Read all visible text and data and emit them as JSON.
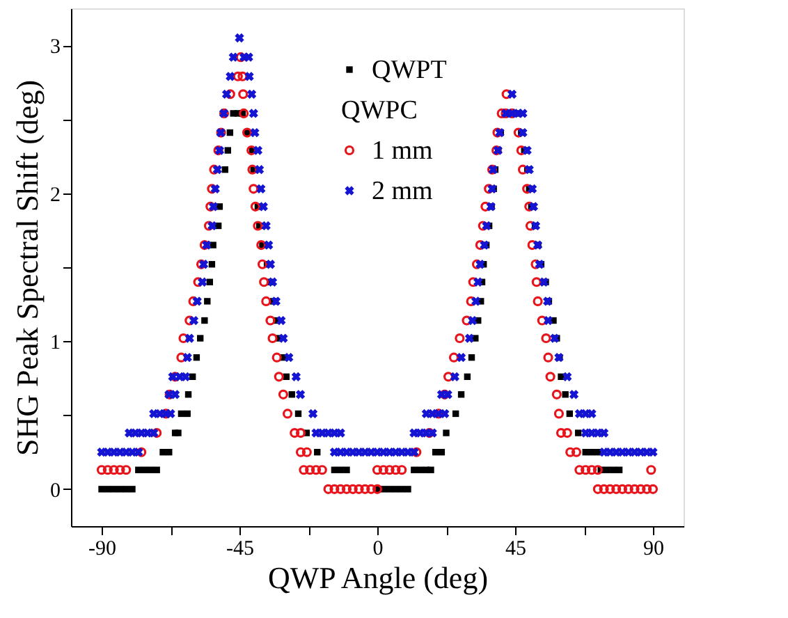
{
  "chart_data": {
    "type": "scatter",
    "xlabel": "QWP Angle (deg)",
    "ylabel": "SHG Peak Spectral Shift (deg)",
    "xlim": [
      -100,
      100
    ],
    "xticks": [
      -90,
      {
        "value": -67.5,
        "label": null
      },
      -45,
      {
        "value": -22.5,
        "label": null
      },
      0,
      {
        "value": 22.5,
        "label": null
      },
      45,
      {
        "value": 67.5,
        "label": null
      },
      90
    ],
    "ylim": [
      -0.25,
      3.25
    ],
    "yticks": [
      0,
      {
        "value": 0.5,
        "label": null
      },
      1,
      {
        "value": 1.5,
        "label": null
      },
      2,
      {
        "value": 2.5,
        "label": null
      },
      3
    ],
    "grid": false,
    "legend": "top",
    "annotations": [
      "QWPC"
    ],
    "series": [
      {
        "name": "QWPT",
        "color": "#000000",
        "marker": "square",
        "x": [
          -90,
          -88,
          -86,
          -84,
          -82,
          -80,
          -78,
          -76,
          -74,
          -72,
          -70,
          -68,
          -66,
          -65,
          -64,
          -62,
          -61.7,
          -60.3,
          -59,
          -57.8,
          -56.4,
          -55.5,
          -54.7,
          -54,
          -53.6,
          -51.9,
          -51.5,
          -49.7,
          -48.8,
          -48.1,
          -47,
          -45.5,
          -44,
          -42.5,
          -40.8,
          -40.4,
          -39,
          -38.5,
          -37.5,
          -36,
          -35,
          -34,
          -33,
          -32,
          -30.7,
          -29.7,
          -27.9,
          -25.8,
          -23.1,
          -19.6,
          -14,
          -12,
          -10,
          0,
          2,
          4,
          6,
          8,
          10,
          12,
          14,
          16,
          17.5,
          19,
          21,
          22.5,
          25.6,
          27.4,
          29.4,
          30.8,
          32,
          32.9,
          33.8,
          34.2,
          34.7,
          35.6,
          36.5,
          37.3,
          38,
          38.5,
          39.5,
          40.3,
          46,
          47,
          48,
          49,
          49.6,
          50.3,
          51.5,
          52.5,
          53.5,
          55,
          56,
          57.5,
          58.6,
          59.5,
          60,
          61.4,
          62.8,
          65.6,
          68,
          70,
          72,
          73,
          75,
          77,
          79
        ],
        "values": [
          0,
          0,
          0,
          0,
          0,
          0,
          0.13,
          0.13,
          0.13,
          0.13,
          0.25,
          0.25,
          0.38,
          0.38,
          0.51,
          0.51,
          0.64,
          0.76,
          0.89,
          1.02,
          1.14,
          1.27,
          1.4,
          1.52,
          1.65,
          1.78,
          1.91,
          2.16,
          2.29,
          2.41,
          2.54,
          2.54,
          2.54,
          2.41,
          2.29,
          2.16,
          1.91,
          1.78,
          1.65,
          1.52,
          1.4,
          1.27,
          1.14,
          1.02,
          0.89,
          0.76,
          0.64,
          0.51,
          0.38,
          0.25,
          0.13,
          0.13,
          0.13,
          0,
          0,
          0,
          0,
          0,
          0,
          0.13,
          0.13,
          0.13,
          0.13,
          0.25,
          0.25,
          0.38,
          0.51,
          0.64,
          0.76,
          0.89,
          1.02,
          1.14,
          1.27,
          1.4,
          1.52,
          1.65,
          1.78,
          1.91,
          2.03,
          2.16,
          2.29,
          2.41,
          2.54,
          2.41,
          2.29,
          2.16,
          2.03,
          1.91,
          1.78,
          1.65,
          1.52,
          1.4,
          1.27,
          1.14,
          1.02,
          0.89,
          0.76,
          0.64,
          0.51,
          0.38,
          0.25,
          0.25,
          0.25,
          0.13,
          0.13,
          0.13,
          0.13
        ]
      },
      {
        "name": "1 mm",
        "color": "#e8141c",
        "marker": "circle",
        "x": [
          -90,
          -88,
          -86,
          -84,
          -82,
          -77,
          -72,
          -69,
          -67.8,
          -66,
          -64,
          -63.3,
          -61.3,
          -60.1,
          -58.5,
          -57.5,
          -56.4,
          -55,
          -54.5,
          -54,
          -53.3,
          -51.9,
          -51,
          -50,
          -48,
          -45.5,
          -44.6,
          -44,
          -43.8,
          -43.6,
          -42.5,
          -41.1,
          -40.8,
          -40.4,
          -39.8,
          -39,
          -37.9,
          -37.5,
          -37,
          -36.3,
          -34.9,
          -34.2,
          -32.8,
          -32.1,
          -30.7,
          -29.3,
          -27,
          -25,
          -25,
          -23,
          -24,
          -22,
          -20,
          -18,
          -16,
          -14,
          -12,
          -10,
          -8,
          -6,
          -4,
          -2,
          0,
          0,
          2,
          4,
          6,
          8,
          12.8,
          17,
          20,
          22,
          23.2,
          25,
          26.9,
          29.2,
          30.6,
          31.3,
          32.5,
          33.6,
          34.5,
          35.3,
          36.4,
          37.5,
          38.9,
          39.2,
          40.6,
          41.9,
          42.2,
          44,
          46.1,
          47,
          47.5,
          48.9,
          49.6,
          50,
          50.6,
          51.7,
          52,
          52.4,
          53.8,
          55.1,
          55.8,
          56.5,
          58.6,
          59.3,
          60,
          62,
          63,
          65,
          66,
          68,
          70,
          72,
          72,
          74,
          76,
          78,
          80,
          82,
          84,
          86,
          88,
          90,
          89.4
        ],
        "values": [
          0.13,
          0.13,
          0.13,
          0.13,
          0.13,
          0.25,
          0.38,
          0.51,
          0.64,
          0.76,
          0.89,
          1.02,
          1.14,
          1.27,
          1.4,
          1.52,
          1.65,
          1.78,
          1.91,
          2.03,
          2.16,
          2.29,
          2.41,
          2.54,
          2.67,
          2.79,
          2.92,
          2.79,
          2.67,
          2.54,
          2.41,
          2.29,
          2.16,
          2.03,
          1.91,
          1.78,
          1.65,
          1.52,
          1.4,
          1.27,
          1.14,
          1.02,
          0.89,
          0.76,
          0.64,
          0.51,
          0.38,
          0.38,
          0.25,
          0.25,
          0.13,
          0.13,
          0.13,
          0.13,
          0,
          0,
          0,
          0,
          0,
          0,
          0,
          0,
          0,
          0.13,
          0.13,
          0.13,
          0.13,
          0.13,
          0.25,
          0.38,
          0.51,
          0.64,
          0.76,
          0.89,
          1.02,
          1.14,
          1.27,
          1.4,
          1.52,
          1.65,
          1.78,
          1.91,
          2.03,
          2.16,
          2.29,
          2.41,
          2.54,
          2.54,
          2.67,
          2.54,
          2.41,
          2.29,
          2.16,
          2.03,
          1.91,
          1.78,
          1.65,
          1.52,
          1.4,
          1.27,
          1.14,
          1.02,
          0.89,
          0.76,
          0.64,
          0.51,
          0.38,
          0.38,
          0.25,
          0.25,
          0.13,
          0.13,
          0.13,
          0.13,
          0,
          0,
          0,
          0,
          0,
          0,
          0,
          0,
          0,
          0,
          0.13
        ]
      },
      {
        "name": "2 mm",
        "color": "#1414d2",
        "marker": "cross",
        "x": [
          -90,
          -88,
          -86,
          -84,
          -82,
          -80,
          -78,
          -81,
          -79,
          -77,
          -75,
          -73,
          -73,
          -71,
          -69,
          -67.5,
          -68,
          -66,
          -66.8,
          -64.5,
          -62.6,
          -62,
          -61.3,
          -59.9,
          -58.8,
          -57.1,
          -56.7,
          -55.7,
          -53.9,
          -53.5,
          -52.9,
          -52.2,
          -51.5,
          -51.1,
          -50.1,
          -49.2,
          -48,
          -47,
          -45,
          -43.5,
          -42,
          -41.8,
          -41,
          -40.4,
          -40,
          -39,
          -38.5,
          -38,
          -37.2,
          -36.3,
          -35.5,
          -34.9,
          -34.2,
          -33.1,
          -31.4,
          -30.7,
          -28.9,
          -26.5,
          -25.1,
          -21,
          -20,
          -18,
          -16,
          -14,
          -12,
          -14,
          -12,
          -10,
          -8,
          -6,
          -4,
          -2,
          0,
          2,
          4,
          6,
          8,
          10,
          12,
          12,
          14,
          16,
          18,
          16,
          18,
          20,
          22,
          21,
          23,
          25.3,
          27.4,
          30.1,
          31.1,
          32.2,
          32.9,
          33.6,
          35,
          35.7,
          37.1,
          37.5,
          37.8,
          39.4,
          40,
          42,
          44,
          46,
          47.5,
          44,
          47.5,
          48.9,
          49.6,
          50.6,
          51,
          51.7,
          52.4,
          53,
          54.4,
          55.6,
          55.8,
          57.9,
          59.3,
          62,
          64.2,
          66,
          68,
          70,
          68,
          70,
          72,
          74,
          74,
          76,
          78,
          80,
          82,
          84,
          86,
          88,
          90
        ],
        "values": [
          0.25,
          0.25,
          0.25,
          0.25,
          0.25,
          0.25,
          0.25,
          0.38,
          0.38,
          0.38,
          0.38,
          0.38,
          0.51,
          0.51,
          0.51,
          0.51,
          0.64,
          0.64,
          0.76,
          0.76,
          0.76,
          0.89,
          1.02,
          1.14,
          1.27,
          1.4,
          1.52,
          1.65,
          1.78,
          1.91,
          2.03,
          2.16,
          2.29,
          2.41,
          2.54,
          2.67,
          2.79,
          2.92,
          3.05,
          2.92,
          2.92,
          2.79,
          2.67,
          2.54,
          2.41,
          2.29,
          2.16,
          2.03,
          1.91,
          1.78,
          1.65,
          1.52,
          1.4,
          1.27,
          1.14,
          1.02,
          0.89,
          0.76,
          0.64,
          0.51,
          0.38,
          0.38,
          0.38,
          0.38,
          0.38,
          0.25,
          0.25,
          0.25,
          0.25,
          0.25,
          0.25,
          0.25,
          0.25,
          0.25,
          0.25,
          0.25,
          0.25,
          0.25,
          0.25,
          0.38,
          0.38,
          0.38,
          0.38,
          0.51,
          0.51,
          0.51,
          0.51,
          0.64,
          0.64,
          0.76,
          0.89,
          1.02,
          1.14,
          1.27,
          1.4,
          1.52,
          1.65,
          1.78,
          1.91,
          2.03,
          2.16,
          2.29,
          2.41,
          2.54,
          2.54,
          2.54,
          2.54,
          2.67,
          2.41,
          2.29,
          2.16,
          2.03,
          1.91,
          1.78,
          1.65,
          1.52,
          1.4,
          1.27,
          1.14,
          1.02,
          0.89,
          0.76,
          0.64,
          0.51,
          0.51,
          0.51,
          0.38,
          0.38,
          0.38,
          0.38,
          0.25,
          0.25,
          0.25,
          0.25,
          0.25,
          0.25,
          0.25,
          0.25,
          0.25
        ]
      }
    ]
  }
}
